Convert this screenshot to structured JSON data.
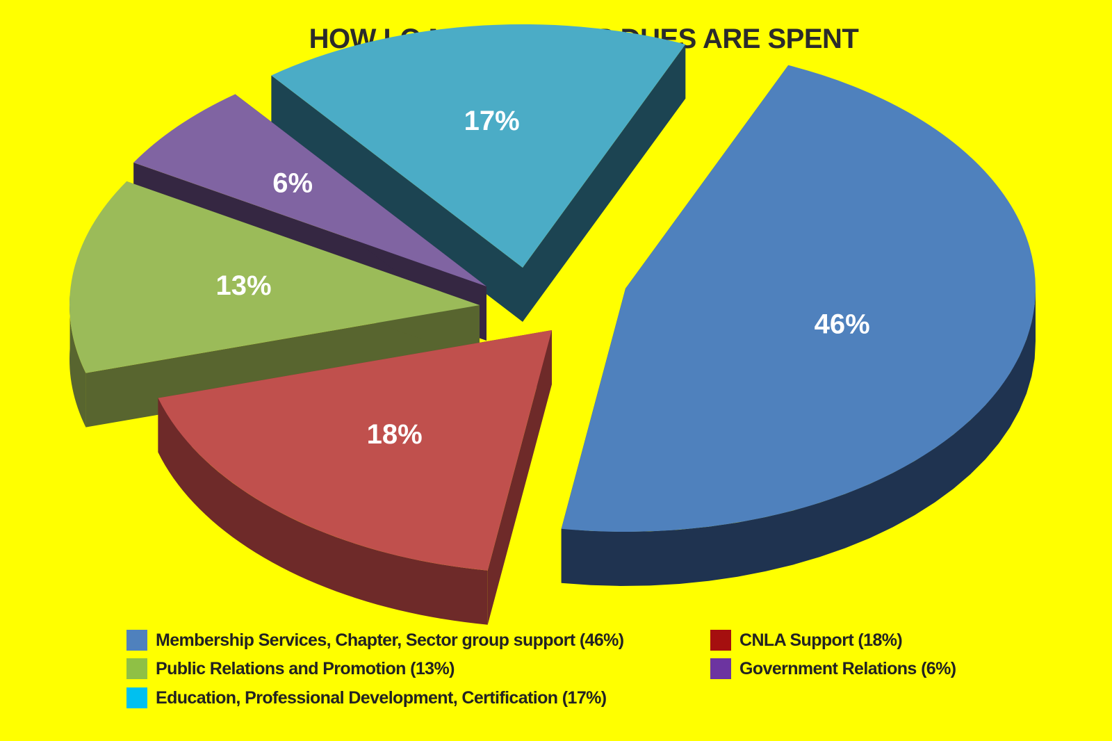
{
  "chart_data": {
    "type": "pie",
    "title": "HOW LO MEMBERSHIP DUES ARE SPENT",
    "slices": [
      {
        "label": "Membership Services, Chapter, Sector group support (46%)",
        "value": 46,
        "display": "46%",
        "color": "#4f81bd",
        "side": "#1f3350"
      },
      {
        "label": "CNLA Support (18%)",
        "value": 18,
        "display": "18%",
        "color": "#c0504d",
        "side": "#6e2a29"
      },
      {
        "label": "Public Relations and Promotion (13%)",
        "value": 13,
        "display": "13%",
        "color": "#9bbb59",
        "side": "#58652f"
      },
      {
        "label": "Government Relations (6%)",
        "value": 6,
        "display": "6%",
        "color": "#8064a2",
        "side": "#352742"
      },
      {
        "label": "Education, Professional Development, Certification (17%)",
        "value": 17,
        "display": "17%",
        "color": "#4bacc6",
        "side": "#1c4452"
      }
    ],
    "legend": [
      {
        "label": "Membership Services, Chapter, Sector group support (46%)",
        "color": "#4f81bd"
      },
      {
        "label": "CNLA Support (18%)",
        "color": "#a50f0f"
      },
      {
        "label": "Public Relations and Promotion (13%)",
        "color": "#8fc045"
      },
      {
        "label": "Government Relations (6%)",
        "color": "#6c34a0"
      },
      {
        "label": "Education, Professional Development, Certification (17%)",
        "color": "#00c0f0"
      }
    ],
    "legend_placement": "bottom"
  }
}
